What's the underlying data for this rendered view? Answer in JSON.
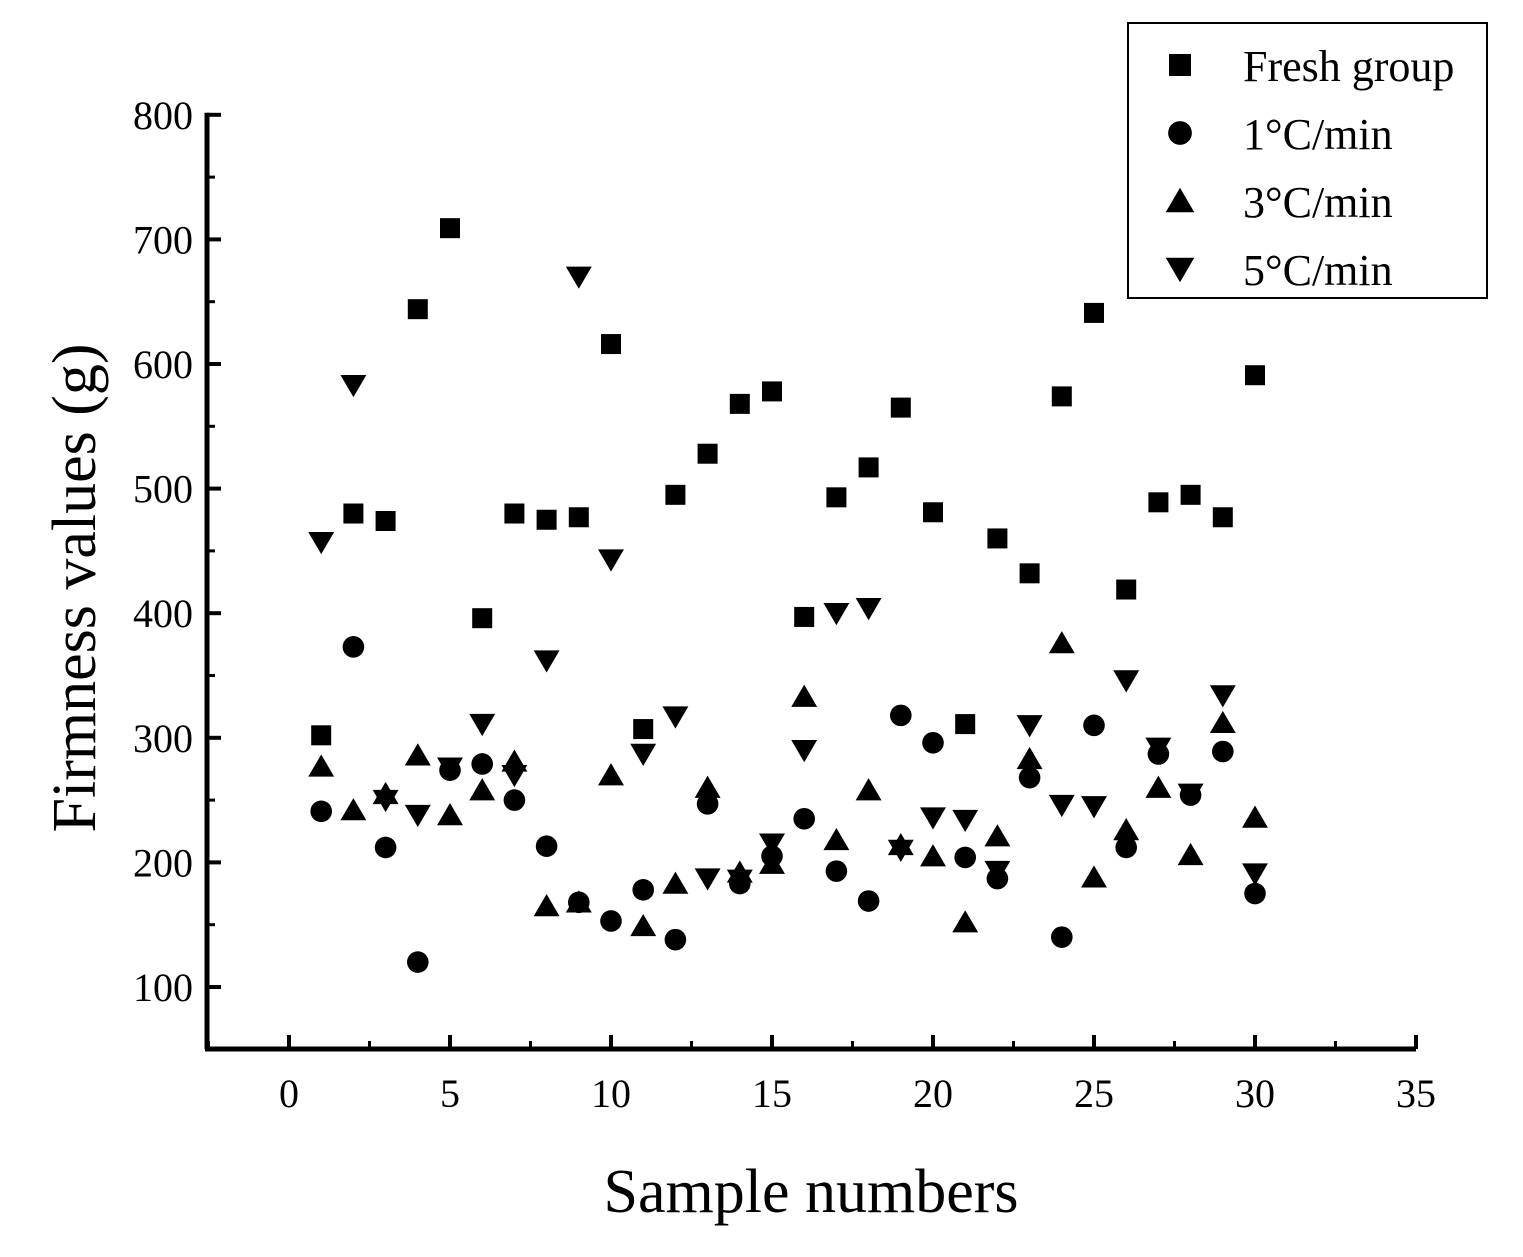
{
  "chart_data": {
    "type": "scatter",
    "xlabel": "Sample numbers",
    "ylabel": "Firmness values (g)",
    "xlim": [
      -2.5,
      35.5
    ],
    "ylim": [
      50,
      800
    ],
    "xticks": [
      0,
      5,
      10,
      15,
      20,
      25,
      30,
      35
    ],
    "yticks": [
      100,
      200,
      300,
      400,
      500,
      600,
      700,
      800
    ],
    "x_tick_labels": [
      "0",
      "5",
      "10",
      "15",
      "20",
      "25",
      "30",
      "35"
    ],
    "y_tick_labels": [
      "100",
      "200",
      "300",
      "400",
      "500",
      "600",
      "700",
      "800"
    ],
    "grid": false,
    "legend_position": "top-right",
    "x": [
      1,
      2,
      3,
      4,
      5,
      6,
      7,
      8,
      9,
      10,
      11,
      12,
      13,
      14,
      15,
      16,
      17,
      18,
      19,
      20,
      21,
      22,
      23,
      24,
      25,
      26,
      27,
      28,
      29,
      30
    ],
    "series": [
      {
        "name": "Fresh group",
        "marker": "square",
        "values": [
          302,
          480,
          474,
          644,
          709,
          396,
          480,
          475,
          477,
          616,
          307,
          495,
          528,
          568,
          578,
          397,
          493,
          517,
          565,
          481,
          311,
          460,
          432,
          574,
          641,
          419,
          489,
          495,
          477,
          591
        ]
      },
      {
        "name": "1°C/min",
        "marker": "circle",
        "values": [
          241,
          373,
          212,
          120,
          274,
          279,
          250,
          213,
          168,
          153,
          178,
          138,
          247,
          183,
          205,
          235,
          193,
          169,
          318,
          296,
          204,
          187,
          268,
          140,
          310,
          212,
          287,
          254,
          289,
          175
        ]
      },
      {
        "name": "3°C/min",
        "marker": "triangle-up",
        "values": [
          277,
          242,
          255,
          286,
          238,
          258,
          281,
          165,
          168,
          270,
          149,
          183,
          260,
          192,
          199,
          333,
          218,
          258,
          214,
          205,
          152,
          221,
          283,
          376,
          188,
          226,
          260,
          206,
          312,
          236
        ]
      },
      {
        "name": "5°C/min",
        "marker": "triangle-down",
        "values": [
          457,
          583,
          250,
          238,
          276,
          311,
          270,
          362,
          670,
          443,
          287,
          317,
          187,
          186,
          215,
          290,
          400,
          404,
          210,
          236,
          234,
          193,
          310,
          246,
          245,
          346,
          292,
          255,
          334,
          191
        ]
      }
    ]
  }
}
